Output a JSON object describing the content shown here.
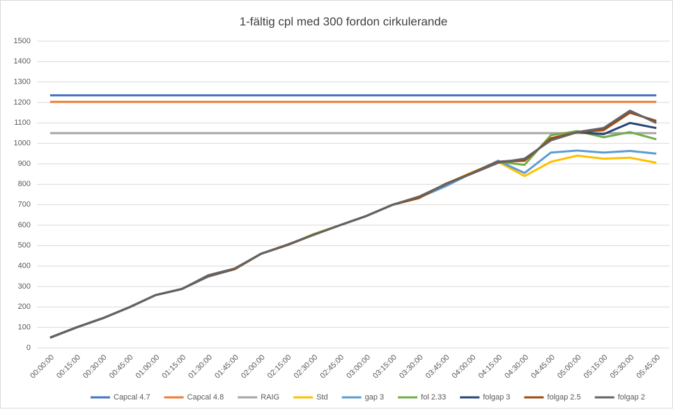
{
  "chart_data": {
    "type": "line",
    "title": "1-fältig cpl med 300 fordon cirkulerande",
    "categories": [
      "00:00:00",
      "00:15:00",
      "00:30:00",
      "00:45:00",
      "01:00:00",
      "01:15:00",
      "01:30:00",
      "01:45:00",
      "02:00:00",
      "02:15:00",
      "02:30:00",
      "02:45:00",
      "03:00:00",
      "03:15:00",
      "03:30:00",
      "03:45:00",
      "04:00:00",
      "04:15:00",
      "04:30:00",
      "04:45:00",
      "05:00:00",
      "05:15:00",
      "05:30:00",
      "05:45:00"
    ],
    "ylim": [
      0,
      1500
    ],
    "yticks": [
      0,
      100,
      200,
      300,
      400,
      500,
      600,
      700,
      800,
      900,
      1000,
      1100,
      1200,
      1300,
      1400,
      1500
    ],
    "grid": true,
    "legend": "bottom",
    "series": [
      {
        "name": "Capcal 4.7",
        "color": "#4472c4",
        "values": [
          1235,
          1235,
          1235,
          1235,
          1235,
          1235,
          1235,
          1235,
          1235,
          1235,
          1235,
          1235,
          1235,
          1235,
          1235,
          1235,
          1235,
          1235,
          1235,
          1235,
          1235,
          1235,
          1235,
          1235
        ]
      },
      {
        "name": "Capcal 4.8",
        "color": "#ed7d31",
        "values": [
          1203,
          1203,
          1203,
          1203,
          1203,
          1203,
          1203,
          1203,
          1203,
          1203,
          1203,
          1203,
          1203,
          1203,
          1203,
          1203,
          1203,
          1203,
          1203,
          1203,
          1203,
          1203,
          1203,
          1203
        ]
      },
      {
        "name": "RAIG",
        "color": "#a5a5a5",
        "values": [
          1050,
          1050,
          1050,
          1050,
          1050,
          1050,
          1050,
          1050,
          1050,
          1050,
          1050,
          1050,
          1050,
          1050,
          1050,
          1050,
          1050,
          1050,
          1050,
          1050,
          1050,
          1050,
          1050,
          1050
        ]
      },
      {
        "name": "Std",
        "color": "#ffc000",
        "values": [
          50,
          100,
          145,
          198,
          258,
          288,
          352,
          385,
          460,
          503,
          557,
          600,
          645,
          700,
          733,
          800,
          858,
          910,
          840,
          910,
          940,
          925,
          930,
          905
        ]
      },
      {
        "name": "gap 3",
        "color": "#5b9bd5",
        "values": [
          50,
          100,
          145,
          198,
          258,
          288,
          348,
          385,
          460,
          503,
          553,
          600,
          645,
          700,
          735,
          790,
          855,
          915,
          855,
          955,
          965,
          955,
          963,
          950
        ]
      },
      {
        "name": "fol 2.33",
        "color": "#70ad47",
        "values": [
          50,
          100,
          145,
          198,
          258,
          288,
          352,
          385,
          460,
          503,
          555,
          600,
          645,
          700,
          735,
          800,
          855,
          910,
          895,
          1040,
          1060,
          1030,
          1055,
          1020
        ]
      },
      {
        "name": "folgap 3",
        "color": "#264478",
        "values": [
          50,
          100,
          145,
          198,
          258,
          288,
          352,
          385,
          460,
          503,
          553,
          600,
          645,
          700,
          738,
          800,
          855,
          910,
          920,
          1020,
          1055,
          1045,
          1100,
          1075
        ]
      },
      {
        "name": "folgap 2.5",
        "color": "#9e480e",
        "values": [
          50,
          100,
          145,
          198,
          258,
          288,
          352,
          385,
          460,
          503,
          553,
          600,
          645,
          700,
          733,
          802,
          855,
          910,
          915,
          1025,
          1055,
          1065,
          1150,
          1110
        ]
      },
      {
        "name": "folgap 2",
        "color": "#636363",
        "values": [
          50,
          100,
          145,
          198,
          258,
          288,
          355,
          388,
          460,
          505,
          553,
          600,
          645,
          700,
          740,
          800,
          852,
          905,
          925,
          1015,
          1055,
          1075,
          1160,
          1100
        ]
      }
    ]
  }
}
